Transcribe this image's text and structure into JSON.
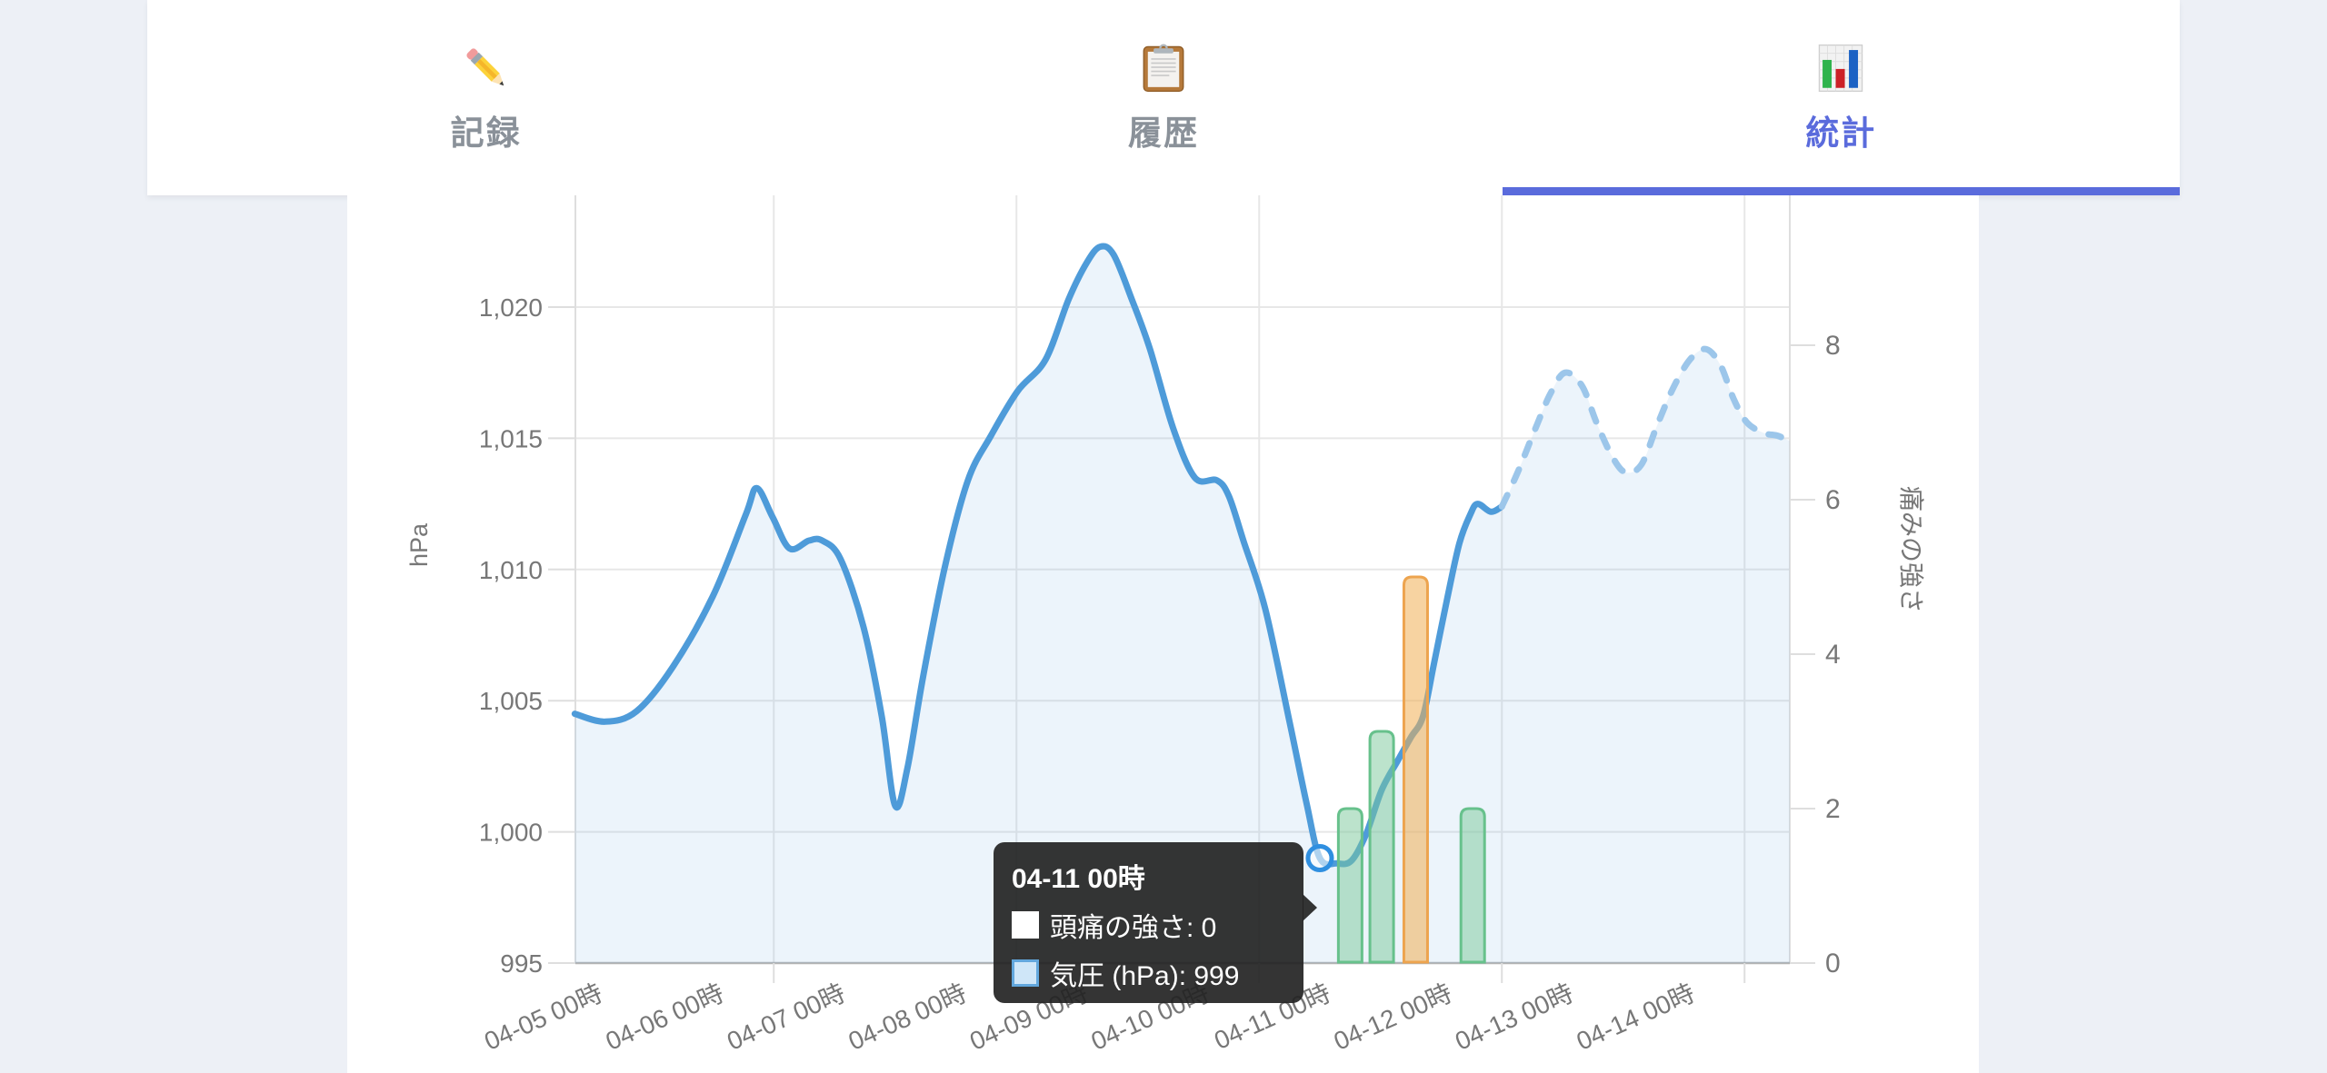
{
  "colors": {
    "accent": "#5a6bdc",
    "page_bg": "#edf0f6",
    "inactive_tab": "#8a9199",
    "grid": "#e7e7e7",
    "axis_border": "#dedede",
    "axis_bottom": "#b4b4b4",
    "axis_text": "#777777",
    "line_solid": "#4e9bd9",
    "line_dashed": "#9cc6ea",
    "area_fill": "rgba(101,165,218,0.12)",
    "bar_green_fill": "rgba(122,199,154,0.5)",
    "bar_green_border": "#67c18c",
    "bar_orange_fill": "rgba(241,175,84,0.55)",
    "bar_orange_border": "#eda44f",
    "marker_stroke": "#2f8fe0"
  },
  "tabs": [
    {
      "label": "記録",
      "icon": "pencil",
      "active": false
    },
    {
      "label": "履歴",
      "icon": "clipboard",
      "active": false
    },
    {
      "label": "統計",
      "icon": "bar-chart",
      "active": true
    }
  ],
  "tooltip": {
    "title": "04-11 00時",
    "rows": [
      {
        "text": "頭痛の強さ: 0",
        "swatch": "headache"
      },
      {
        "text": "気圧 (hPa): 999",
        "swatch": "pressure"
      }
    ]
  },
  "chart_data": {
    "type": "line+bar",
    "x_labels": [
      "04-05 00時",
      "04-06 00時",
      "04-07 00時",
      "04-08 00時",
      "04-09 00時",
      "04-10 00時",
      "04-11 00時",
      "04-12 00時",
      "04-13 00時",
      "04-14 00時"
    ],
    "x_gridline_days": [
      1.5,
      3.5,
      5.5,
      7.5,
      9.5
    ],
    "x_range_days": [
      -0.14,
      9.87
    ],
    "left_axis": {
      "title": "hPa",
      "ticks": [
        995,
        1000,
        1005,
        1010,
        1015,
        1020
      ],
      "tick_labels": [
        "995",
        "1,000",
        "1,005",
        "1,010",
        "1,015",
        "1,020"
      ],
      "range": [
        995,
        1024.3
      ]
    },
    "right_axis": {
      "title": "痛みの強さ",
      "ticks": [
        0,
        2,
        4,
        6,
        8
      ],
      "tick_labels": [
        "0",
        "2",
        "4",
        "6",
        "8"
      ],
      "range": [
        0,
        9.94
      ]
    },
    "pressure_solid": [
      [
        -0.14,
        1004.5
      ],
      [
        0.11,
        1004.2
      ],
      [
        0.37,
        1004.6
      ],
      [
        0.67,
        1006.3
      ],
      [
        1.0,
        1009.0
      ],
      [
        1.27,
        1012.1
      ],
      [
        1.36,
        1013.1
      ],
      [
        1.49,
        1012.0
      ],
      [
        1.63,
        1010.8
      ],
      [
        1.79,
        1011.1
      ],
      [
        1.9,
        1011.1
      ],
      [
        2.05,
        1010.4
      ],
      [
        2.24,
        1007.8
      ],
      [
        2.39,
        1004.4
      ],
      [
        2.5,
        1001.0
      ],
      [
        2.6,
        1002.4
      ],
      [
        2.73,
        1005.9
      ],
      [
        2.91,
        1010.1
      ],
      [
        3.1,
        1013.4
      ],
      [
        3.29,
        1015.1
      ],
      [
        3.51,
        1016.8
      ],
      [
        3.74,
        1018.0
      ],
      [
        3.93,
        1020.3
      ],
      [
        4.08,
        1021.7
      ],
      [
        4.19,
        1022.3
      ],
      [
        4.3,
        1022.0
      ],
      [
        4.45,
        1020.3
      ],
      [
        4.6,
        1018.4
      ],
      [
        4.79,
        1015.4
      ],
      [
        4.97,
        1013.5
      ],
      [
        5.15,
        1013.4
      ],
      [
        5.25,
        1012.8
      ],
      [
        5.37,
        1011.1
      ],
      [
        5.55,
        1008.5
      ],
      [
        5.75,
        1004.2
      ],
      [
        5.89,
        1001.1
      ],
      [
        6.0,
        999.0
      ],
      [
        6.14,
        998.8
      ],
      [
        6.26,
        998.9
      ],
      [
        6.38,
        999.9
      ],
      [
        6.51,
        1001.6
      ],
      [
        6.64,
        1002.7
      ],
      [
        6.75,
        1003.6
      ],
      [
        6.85,
        1004.4
      ],
      [
        6.94,
        1006.4
      ],
      [
        7.05,
        1008.9
      ],
      [
        7.15,
        1011.0
      ],
      [
        7.24,
        1012.1
      ],
      [
        7.3,
        1012.5
      ],
      [
        7.41,
        1012.2
      ],
      [
        7.5,
        1012.4
      ]
    ],
    "pressure_forecast": [
      [
        7.5,
        1012.4
      ],
      [
        7.63,
        1013.7
      ],
      [
        7.77,
        1015.3
      ],
      [
        7.9,
        1016.7
      ],
      [
        8.02,
        1017.5
      ],
      [
        8.16,
        1017.0
      ],
      [
        8.28,
        1015.6
      ],
      [
        8.41,
        1014.3
      ],
      [
        8.52,
        1013.7
      ],
      [
        8.65,
        1014.0
      ],
      [
        8.78,
        1015.5
      ],
      [
        8.91,
        1016.9
      ],
      [
        9.05,
        1018.0
      ],
      [
        9.18,
        1018.4
      ],
      [
        9.3,
        1017.8
      ],
      [
        9.41,
        1016.5
      ],
      [
        9.52,
        1015.6
      ],
      [
        9.66,
        1015.2
      ],
      [
        9.77,
        1015.1
      ],
      [
        9.87,
        1014.9
      ]
    ],
    "pain_bars": [
      {
        "day": 6.25,
        "value": 2,
        "color": "green"
      },
      {
        "day": 6.51,
        "value": 3,
        "color": "green"
      },
      {
        "day": 6.79,
        "value": 5,
        "color": "orange"
      },
      {
        "day": 7.26,
        "value": 2,
        "color": "green"
      }
    ],
    "highlight_point": {
      "day": 6.0,
      "hpa": 999
    }
  }
}
